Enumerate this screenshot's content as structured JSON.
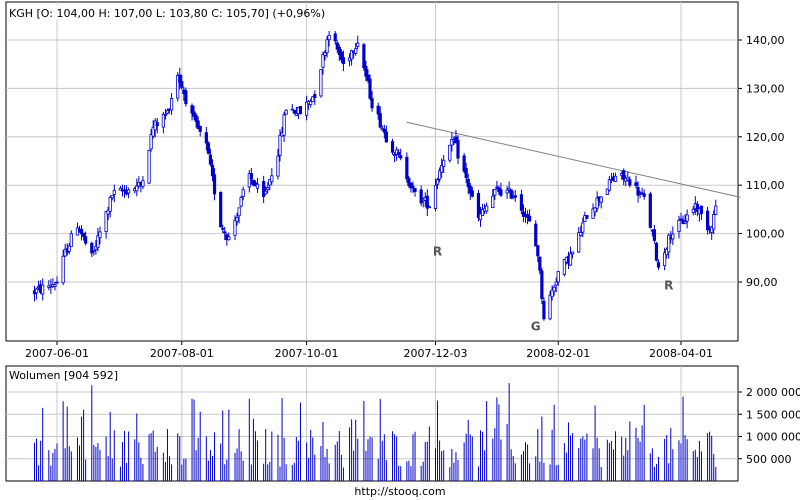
{
  "chart_data": [
    {
      "type": "candlestick",
      "legend": "KGH [O: 104,00  H: 107,00  L: 103,80  C: 105,70] (+0,96%)",
      "ylim": [
        80,
        145
      ],
      "y_ticks": [
        "90,00",
        "100,00",
        "110,00",
        "120,00",
        "130,00",
        "140,00"
      ],
      "y_tick_values": [
        90,
        100,
        110,
        120,
        130,
        140
      ],
      "x_ticks": [
        "2007-06-01",
        "2007-08-01",
        "2007-10-01",
        "2007-12-03",
        "2008-02-01",
        "2008-04-01"
      ],
      "grid": true,
      "colors": {
        "candle": "#0000cc",
        "trendline": "#808080",
        "grid": "#c8c8c8"
      },
      "series_waypoints": [
        {
          "x": "2007-05-21",
          "y": 88
        },
        {
          "x": "2007-06-01",
          "y": 90
        },
        {
          "x": "2007-06-05",
          "y": 96
        },
        {
          "x": "2007-06-11",
          "y": 102
        },
        {
          "x": "2007-06-18",
          "y": 95
        },
        {
          "x": "2007-06-28",
          "y": 108
        },
        {
          "x": "2007-07-12",
          "y": 110
        },
        {
          "x": "2007-07-18",
          "y": 122
        },
        {
          "x": "2007-07-25",
          "y": 125
        },
        {
          "x": "2007-07-30",
          "y": 133
        },
        {
          "x": "2007-08-06",
          "y": 124
        },
        {
          "x": "2007-08-13",
          "y": 118
        },
        {
          "x": "2007-08-20",
          "y": 102
        },
        {
          "x": "2007-08-24",
          "y": 99
        },
        {
          "x": "2007-09-03",
          "y": 112
        },
        {
          "x": "2007-09-10",
          "y": 107
        },
        {
          "x": "2007-09-17",
          "y": 117
        },
        {
          "x": "2007-09-21",
          "y": 126
        },
        {
          "x": "2007-09-28",
          "y": 125
        },
        {
          "x": "2007-10-05",
          "y": 129
        },
        {
          "x": "2007-10-12",
          "y": 142
        },
        {
          "x": "2007-10-19",
          "y": 135
        },
        {
          "x": "2007-10-26",
          "y": 140
        },
        {
          "x": "2007-11-02",
          "y": 127
        },
        {
          "x": "2007-11-09",
          "y": 120
        },
        {
          "x": "2007-11-16",
          "y": 115
        },
        {
          "x": "2007-11-23",
          "y": 108
        },
        {
          "x": "2007-11-30",
          "y": 106
        },
        {
          "x": "2007-12-07",
          "y": 116
        },
        {
          "x": "2007-12-12",
          "y": 119
        },
        {
          "x": "2007-12-19",
          "y": 110
        },
        {
          "x": "2007-12-24",
          "y": 103
        },
        {
          "x": "2008-01-02",
          "y": 109
        },
        {
          "x": "2008-01-11",
          "y": 108
        },
        {
          "x": "2008-01-18",
          "y": 102
        },
        {
          "x": "2008-01-22",
          "y": 96
        },
        {
          "x": "2008-01-25",
          "y": 83
        },
        {
          "x": "2008-02-01",
          "y": 92
        },
        {
          "x": "2008-02-08",
          "y": 96
        },
        {
          "x": "2008-02-15",
          "y": 104
        },
        {
          "x": "2008-02-22",
          "y": 108
        },
        {
          "x": "2008-02-29",
          "y": 112
        },
        {
          "x": "2008-03-07",
          "y": 111
        },
        {
          "x": "2008-03-14",
          "y": 107
        },
        {
          "x": "2008-03-18",
          "y": 100
        },
        {
          "x": "2008-03-21",
          "y": 93
        },
        {
          "x": "2008-03-27",
          "y": 100
        },
        {
          "x": "2008-04-03",
          "y": 103
        },
        {
          "x": "2008-04-08",
          "y": 106
        },
        {
          "x": "2008-04-15",
          "y": 101
        },
        {
          "x": "2008-04-18",
          "y": 105
        }
      ],
      "trendline": {
        "from": {
          "x": "2007-11-19",
          "y": 123
        },
        "to": {
          "x": "2008-04-30",
          "y": 107.5
        }
      },
      "annotations": [
        {
          "text": "R",
          "x": "2007-12-04",
          "y": 95.5
        },
        {
          "text": "G",
          "x": "2008-01-21",
          "y": 80
        },
        {
          "text": "R",
          "x": "2008-03-26",
          "y": 88.5
        }
      ]
    },
    {
      "type": "bar",
      "legend": "Wolumen [904 592]",
      "ylim": [
        0,
        2500000
      ],
      "y_ticks": [
        "500 000",
        "1 000 000",
        "1 500 000",
        "2 000 000"
      ],
      "y_tick_values": [
        500000,
        1000000,
        1500000,
        2000000
      ],
      "bar_color": "#0000cc",
      "x_range": [
        "2007-05-21",
        "2008-04-18"
      ]
    }
  ],
  "footer": {
    "url": "http://stooq.com"
  }
}
